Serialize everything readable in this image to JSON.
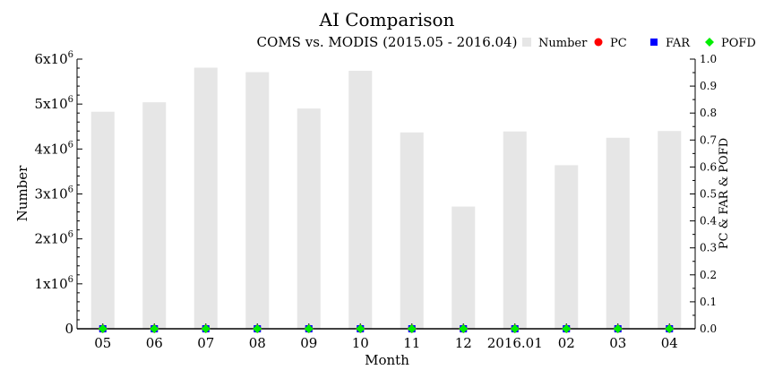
{
  "chart_data": {
    "type": "bar",
    "title": "AI Comparison",
    "subtitle": "COMS vs. MODIS (2015.05 - 2016.04)",
    "xlabel": "Month",
    "ylabel": "Number",
    "y2label": "PC & FAR & POFD",
    "categories": [
      "05",
      "06",
      "07",
      "08",
      "09",
      "10",
      "11",
      "12",
      "2016.01",
      "02",
      "03",
      "04"
    ],
    "ylim": [
      0,
      6000000
    ],
    "y2lim": [
      0,
      1.0
    ],
    "yticks": [
      {
        "value": 0,
        "label": "0",
        "exp": ""
      },
      {
        "value": 1000000,
        "label": "1x10",
        "exp": "6"
      },
      {
        "value": 2000000,
        "label": "2x10",
        "exp": "6"
      },
      {
        "value": 3000000,
        "label": "3x10",
        "exp": "6"
      },
      {
        "value": 4000000,
        "label": "4x10",
        "exp": "6"
      },
      {
        "value": 5000000,
        "label": "5x10",
        "exp": "6"
      },
      {
        "value": 6000000,
        "label": "6x10",
        "exp": "6"
      }
    ],
    "y2ticks": [
      "0.0",
      "0.1",
      "0.2",
      "0.3",
      "0.4",
      "0.5",
      "0.6",
      "0.7",
      "0.8",
      "0.9",
      "1.0"
    ],
    "grid": false,
    "legend_position": "top-right",
    "series": [
      {
        "name": "Number",
        "kind": "bar",
        "axis": "left",
        "color": "#e6e6e6",
        "values": [
          4830000,
          5040000,
          5810000,
          5710000,
          4900000,
          5740000,
          4370000,
          2720000,
          4390000,
          3640000,
          4250000,
          4400000
        ]
      },
      {
        "name": "PC",
        "kind": "points",
        "axis": "right",
        "marker": "circle",
        "color": "#ff0000",
        "values": [
          0.0,
          0.0,
          0.0,
          0.0,
          0.0,
          0.0,
          0.0,
          0.0,
          0.0,
          0.0,
          0.0,
          0.0
        ]
      },
      {
        "name": "FAR",
        "kind": "points",
        "axis": "right",
        "marker": "square",
        "color": "#0000ff",
        "values": [
          0.0,
          0.0,
          0.0,
          0.0,
          0.0,
          0.0,
          0.0,
          0.0,
          0.0,
          0.0,
          0.0,
          0.0
        ]
      },
      {
        "name": "POFD",
        "kind": "points",
        "axis": "right",
        "marker": "diamond",
        "color": "#00ee00",
        "values": [
          0.0,
          0.0,
          0.0,
          0.0,
          0.0,
          0.0,
          0.0,
          0.0,
          0.0,
          0.0,
          0.0,
          0.0
        ]
      }
    ]
  }
}
